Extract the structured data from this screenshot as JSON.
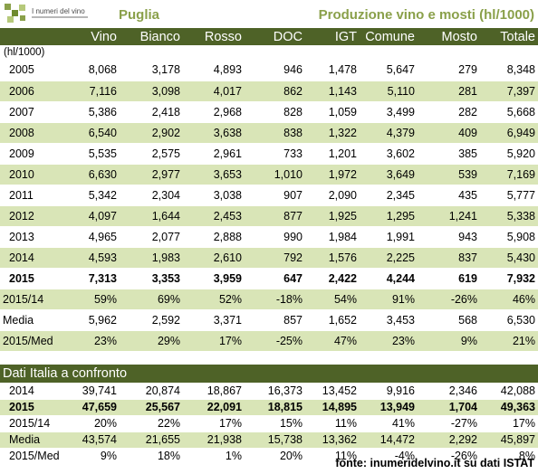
{
  "header": {
    "logo_text": "I numeri del vino",
    "region": "Puglia",
    "title": "Produzione vino e mosti (hl/1000)"
  },
  "columns": [
    "",
    "Vino",
    "Bianco",
    "Rosso",
    "DOC",
    "IGT",
    "Comune",
    "Mosto",
    "Totale"
  ],
  "unit": "(hl/1000)",
  "rows": [
    {
      "label": "2005",
      "values": [
        "8,068",
        "3,178",
        "4,893",
        "946",
        "1,478",
        "5,647",
        "279",
        "8,348"
      ]
    },
    {
      "label": "2006",
      "values": [
        "7,116",
        "3,098",
        "4,017",
        "862",
        "1,143",
        "5,110",
        "281",
        "7,397"
      ]
    },
    {
      "label": "2007",
      "values": [
        "5,386",
        "2,418",
        "2,968",
        "828",
        "1,059",
        "3,499",
        "282",
        "5,668"
      ]
    },
    {
      "label": "2008",
      "values": [
        "6,540",
        "2,902",
        "3,638",
        "838",
        "1,322",
        "4,379",
        "409",
        "6,949"
      ]
    },
    {
      "label": "2009",
      "values": [
        "5,535",
        "2,575",
        "2,961",
        "733",
        "1,201",
        "3,602",
        "385",
        "5,920"
      ]
    },
    {
      "label": "2010",
      "values": [
        "6,630",
        "2,977",
        "3,653",
        "1,010",
        "1,972",
        "3,649",
        "539",
        "7,169"
      ]
    },
    {
      "label": "2011",
      "values": [
        "5,342",
        "2,304",
        "3,038",
        "907",
        "2,090",
        "2,345",
        "435",
        "5,777"
      ]
    },
    {
      "label": "2012",
      "values": [
        "4,097",
        "1,644",
        "2,453",
        "877",
        "1,925",
        "1,295",
        "1,241",
        "5,338"
      ]
    },
    {
      "label": "2013",
      "values": [
        "4,965",
        "2,077",
        "2,888",
        "990",
        "1,984",
        "1,991",
        "943",
        "5,908"
      ]
    },
    {
      "label": "2014",
      "values": [
        "4,593",
        "1,983",
        "2,610",
        "792",
        "1,576",
        "2,225",
        "837",
        "5,430"
      ]
    },
    {
      "label": "2015",
      "values": [
        "7,313",
        "3,353",
        "3,959",
        "647",
        "2,422",
        "4,244",
        "619",
        "7,932"
      ]
    },
    {
      "label": "2015/14",
      "values": [
        "59%",
        "69%",
        "52%",
        "-18%",
        "54%",
        "91%",
        "-26%",
        "46%"
      ]
    },
    {
      "label": "Media",
      "values": [
        "5,962",
        "2,592",
        "3,371",
        "857",
        "1,652",
        "3,453",
        "568",
        "6,530"
      ]
    },
    {
      "label": "2015/Med",
      "values": [
        "23%",
        "29%",
        "17%",
        "-25%",
        "47%",
        "23%",
        "9%",
        "21%"
      ]
    }
  ],
  "italy": {
    "title": "Dati Italia a confronto",
    "rows": [
      {
        "label": "2014",
        "values": [
          "39,741",
          "20,874",
          "18,867",
          "16,373",
          "13,452",
          "9,916",
          "2,346",
          "42,088"
        ]
      },
      {
        "label": "2015",
        "values": [
          "47,659",
          "25,567",
          "22,091",
          "18,815",
          "14,895",
          "13,949",
          "1,704",
          "49,363"
        ]
      },
      {
        "label": "2015/14",
        "values": [
          "20%",
          "22%",
          "17%",
          "15%",
          "11%",
          "41%",
          "-27%",
          "17%"
        ]
      },
      {
        "label": "Media",
        "values": [
          "43,574",
          "21,655",
          "21,938",
          "15,738",
          "13,362",
          "14,472",
          "2,292",
          "45,897"
        ]
      },
      {
        "label": "2015/Med",
        "values": [
          "9%",
          "18%",
          "1%",
          "20%",
          "11%",
          "-4%",
          "-26%",
          "8%"
        ]
      }
    ]
  },
  "footer": "fonte: inumeridelvino.it su dati ISTAT",
  "colors": {
    "header_bg": "#4e6227",
    "band_green": "#d9e5b7",
    "title_green": "#8aa04a"
  }
}
